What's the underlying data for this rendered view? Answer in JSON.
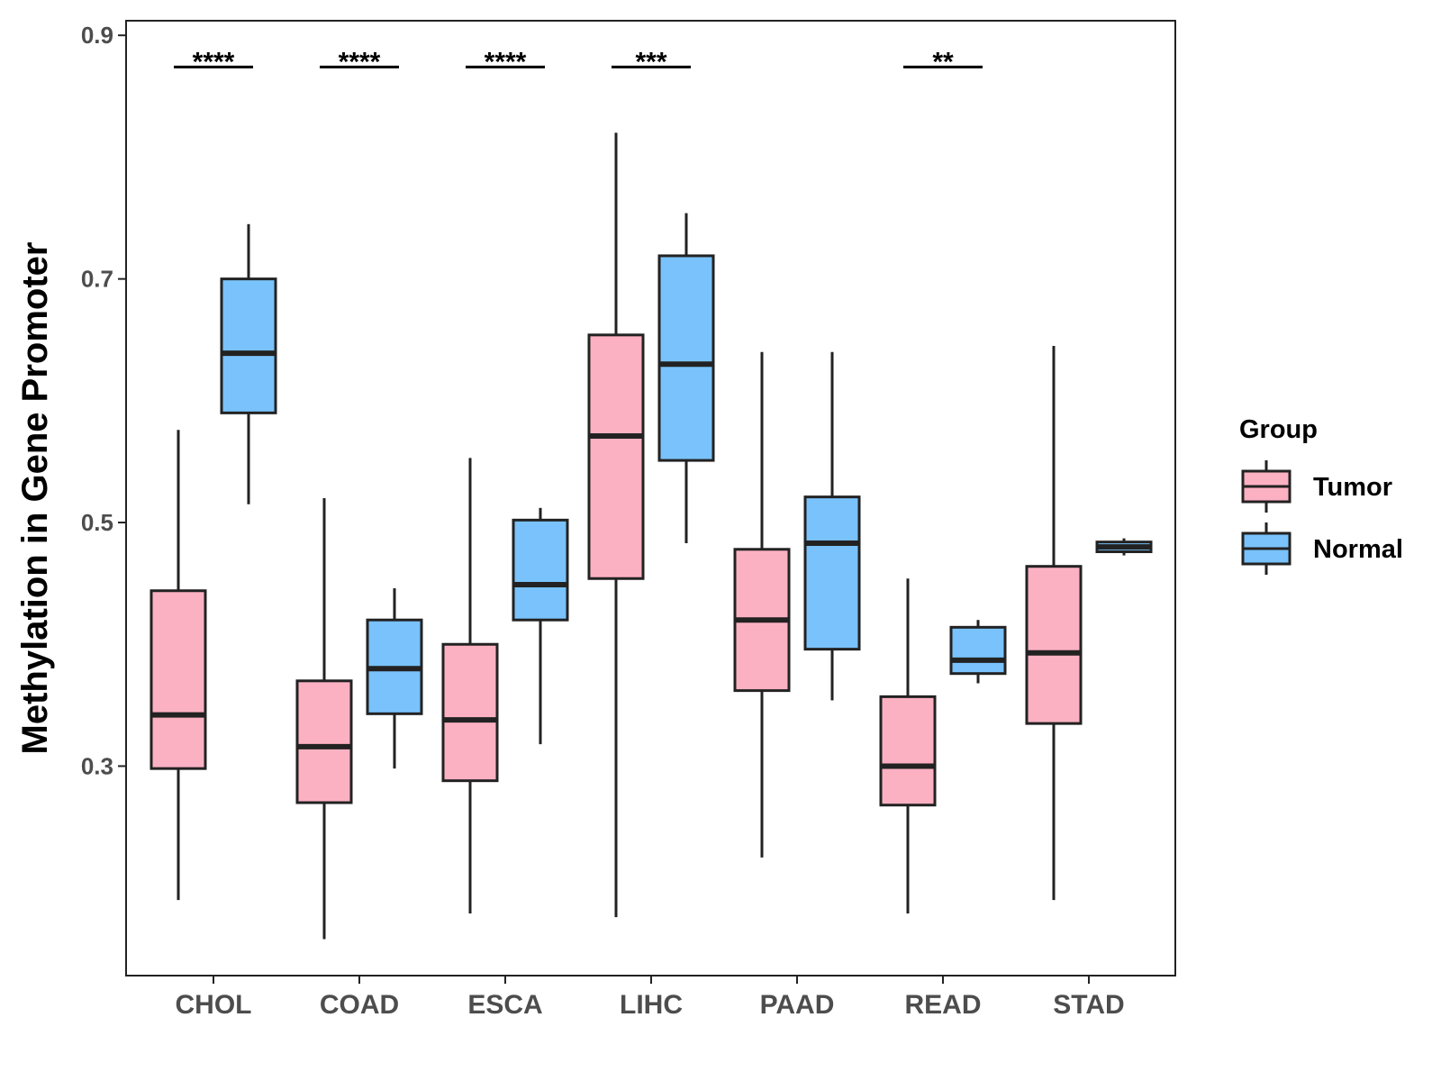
{
  "chart_data": {
    "type": "boxplot",
    "title": "",
    "xlabel": "",
    "ylabel": "Methylation in Gene Promoter",
    "ylim": [
      0.128,
      0.912
    ],
    "yticks": [
      {
        "value": 0.3,
        "label": "0.3"
      },
      {
        "value": 0.5,
        "label": "0.5"
      },
      {
        "value": 0.7,
        "label": "0.7"
      },
      {
        "value": 0.9,
        "label": "0.9"
      }
    ],
    "categories": [
      "CHOL",
      "COAD",
      "ESCA",
      "LIHC",
      "PAAD",
      "READ",
      "STAD"
    ],
    "legend": {
      "title": "Group",
      "position": "right",
      "items": [
        {
          "label": "Tumor",
          "color": "#fcb1c3"
        },
        {
          "label": "Normal",
          "color": "#79c2fb"
        }
      ]
    },
    "series": [
      {
        "name": "Tumor",
        "color": "#fcb1c3",
        "boxes": [
          {
            "category": "CHOL",
            "min": 0.19,
            "q1": 0.298,
            "median": 0.342,
            "q3": 0.444,
            "max": 0.576
          },
          {
            "category": "COAD",
            "min": 0.158,
            "q1": 0.27,
            "median": 0.316,
            "q3": 0.37,
            "max": 0.52
          },
          {
            "category": "ESCA",
            "min": 0.179,
            "q1": 0.288,
            "median": 0.338,
            "q3": 0.4,
            "max": 0.553
          },
          {
            "category": "LIHC",
            "min": 0.176,
            "q1": 0.454,
            "median": 0.571,
            "q3": 0.654,
            "max": 0.82
          },
          {
            "category": "PAAD",
            "min": 0.225,
            "q1": 0.362,
            "median": 0.42,
            "q3": 0.478,
            "max": 0.64
          },
          {
            "category": "READ",
            "min": 0.179,
            "q1": 0.268,
            "median": 0.3,
            "q3": 0.357,
            "max": 0.454
          },
          {
            "category": "STAD",
            "min": 0.19,
            "q1": 0.335,
            "median": 0.393,
            "q3": 0.464,
            "max": 0.645
          }
        ]
      },
      {
        "name": "Normal",
        "color": "#79c2fb",
        "boxes": [
          {
            "category": "CHOL",
            "min": 0.515,
            "q1": 0.59,
            "median": 0.639,
            "q3": 0.7,
            "max": 0.745
          },
          {
            "category": "COAD",
            "min": 0.298,
            "q1": 0.343,
            "median": 0.38,
            "q3": 0.42,
            "max": 0.446
          },
          {
            "category": "ESCA",
            "min": 0.318,
            "q1": 0.42,
            "median": 0.449,
            "q3": 0.502,
            "max": 0.512
          },
          {
            "category": "LIHC",
            "min": 0.483,
            "q1": 0.551,
            "median": 0.63,
            "q3": 0.719,
            "max": 0.754
          },
          {
            "category": "PAAD",
            "min": 0.354,
            "q1": 0.396,
            "median": 0.483,
            "q3": 0.521,
            "max": 0.64
          },
          {
            "category": "READ",
            "min": 0.368,
            "q1": 0.376,
            "median": 0.387,
            "q3": 0.414,
            "max": 0.42
          },
          {
            "category": "STAD",
            "min": 0.473,
            "q1": 0.476,
            "median": 0.48,
            "q3": 0.484,
            "max": 0.487
          }
        ]
      }
    ],
    "significance": [
      {
        "category": "CHOL",
        "label": "****",
        "y": 0.874
      },
      {
        "category": "COAD",
        "label": "****",
        "y": 0.874
      },
      {
        "category": "ESCA",
        "label": "****",
        "y": 0.874
      },
      {
        "category": "LIHC",
        "label": "***",
        "y": 0.874
      },
      {
        "category": "READ",
        "label": "**",
        "y": 0.874
      }
    ]
  }
}
